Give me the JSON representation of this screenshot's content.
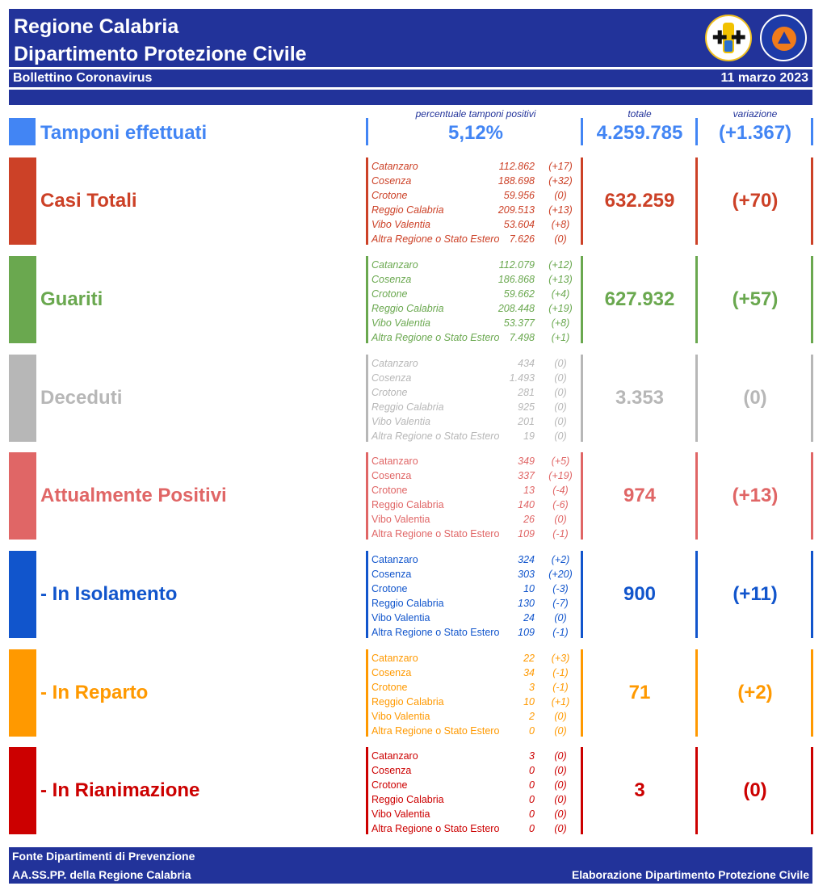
{
  "header": {
    "title_line1": "Regione Calabria",
    "title_line2": "Dipartimento Protezione Civile",
    "subtitle": "Bollettino Coronavirus",
    "date": "11 marzo 2023",
    "logo_region_icon": "regione-calabria-crest-icon",
    "logo_pc_icon": "protezione-civile-logo-icon"
  },
  "columns": {
    "percentage": "percentuale tamponi positivi",
    "total": "totale",
    "variation": "variazione"
  },
  "tamponi": {
    "label": "Tamponi effettuati",
    "percentage": "5,12%",
    "total": "4.259.785",
    "variation": "(+1.367)",
    "color": "#4285f4"
  },
  "categories": [
    {
      "label": "Casi Totali",
      "color": "#cc4127",
      "italic_provinces": true,
      "total": "632.259",
      "variation": "(+70)",
      "provinces": [
        {
          "name": "Catanzaro",
          "value": "112.862",
          "delta": "(+17)"
        },
        {
          "name": "Cosenza",
          "value": "188.698",
          "delta": "(+32)"
        },
        {
          "name": "Crotone",
          "value": "59.956",
          "delta": "(0)"
        },
        {
          "name": "Reggio Calabria",
          "value": "209.513",
          "delta": "(+13)"
        },
        {
          "name": "Vibo Valentia",
          "value": "53.604",
          "delta": "(+8)"
        },
        {
          "name": "Altra Regione o Stato Estero",
          "value": "7.626",
          "delta": "(0)"
        }
      ]
    },
    {
      "label": "Guariti",
      "color": "#6aa84f",
      "italic_provinces": true,
      "total": "627.932",
      "variation": "(+57)",
      "provinces": [
        {
          "name": "Catanzaro",
          "value": "112.079",
          "delta": "(+12)"
        },
        {
          "name": "Cosenza",
          "value": "186.868",
          "delta": "(+13)"
        },
        {
          "name": "Crotone",
          "value": "59.662",
          "delta": "(+4)"
        },
        {
          "name": "Reggio Calabria",
          "value": "208.448",
          "delta": "(+19)"
        },
        {
          "name": "Vibo Valentia",
          "value": "53.377",
          "delta": "(+8)"
        },
        {
          "name": "Altra Regione o Stato Estero",
          "value": "7.498",
          "delta": "(+1)"
        }
      ]
    },
    {
      "label": "Deceduti",
      "color": "#b7b7b7",
      "italic_provinces": true,
      "total": "3.353",
      "variation": "(0)",
      "provinces": [
        {
          "name": "Catanzaro",
          "value": "434",
          "delta": "(0)"
        },
        {
          "name": "Cosenza",
          "value": "1.493",
          "delta": "(0)"
        },
        {
          "name": "Crotone",
          "value": "281",
          "delta": "(0)"
        },
        {
          "name": "Reggio Calabria",
          "value": "925",
          "delta": "(0)"
        },
        {
          "name": "Vibo Valentia",
          "value": "201",
          "delta": "(0)"
        },
        {
          "name": "Altra Regione o Stato Estero",
          "value": "19",
          "delta": "(0)"
        }
      ]
    },
    {
      "label": "Attualmente Positivi",
      "color": "#e06666",
      "italic_provinces": false,
      "total": "974",
      "variation": "(+13)",
      "provinces": [
        {
          "name": "Catanzaro",
          "value": "349",
          "delta": "(+5)"
        },
        {
          "name": "Cosenza",
          "value": "337",
          "delta": "(+19)"
        },
        {
          "name": "Crotone",
          "value": "13",
          "delta": "(-4)"
        },
        {
          "name": "Reggio Calabria",
          "value": "140",
          "delta": "(-6)"
        },
        {
          "name": "Vibo Valentia",
          "value": "26",
          "delta": "(0)"
        },
        {
          "name": "Altra Regione o Stato Estero",
          "value": "109",
          "delta": "(-1)"
        }
      ]
    },
    {
      "label": " - In Isolamento",
      "color": "#1155cc",
      "italic_provinces": false,
      "total": "900",
      "variation": "(+11)",
      "provinces": [
        {
          "name": "Catanzaro",
          "value": "324",
          "delta": "(+2)"
        },
        {
          "name": "Cosenza",
          "value": "303",
          "delta": "(+20)"
        },
        {
          "name": "Crotone",
          "value": "10",
          "delta": "(-3)"
        },
        {
          "name": "Reggio Calabria",
          "value": "130",
          "delta": "(-7)"
        },
        {
          "name": "Vibo Valentia",
          "value": "24",
          "delta": "(0)"
        },
        {
          "name": "Altra Regione o Stato Estero",
          "value": "109",
          "delta": "(-1)"
        }
      ]
    },
    {
      "label": " - In Reparto",
      "color": "#ff9900",
      "italic_provinces": false,
      "total": "71",
      "variation": "(+2)",
      "provinces": [
        {
          "name": "Catanzaro",
          "value": "22",
          "delta": "(+3)"
        },
        {
          "name": "Cosenza",
          "value": "34",
          "delta": "(-1)"
        },
        {
          "name": "Crotone",
          "value": "3",
          "delta": "(-1)"
        },
        {
          "name": "Reggio Calabria",
          "value": "10",
          "delta": "(+1)"
        },
        {
          "name": "Vibo Valentia",
          "value": "2",
          "delta": "(0)"
        },
        {
          "name": "Altra Regione o Stato Estero",
          "value": "0",
          "delta": "(0)"
        }
      ]
    },
    {
      "label": " - In Rianimazione",
      "color": "#cc0000",
      "italic_provinces": false,
      "total": "3",
      "variation": "(0)",
      "provinces": [
        {
          "name": "Catanzaro",
          "value": "3",
          "delta": "(0)"
        },
        {
          "name": "Cosenza",
          "value": "0",
          "delta": "(0)"
        },
        {
          "name": "Crotone",
          "value": "0",
          "delta": "(0)"
        },
        {
          "name": "Reggio Calabria",
          "value": "0",
          "delta": "(0)"
        },
        {
          "name": "Vibo Valentia",
          "value": "0",
          "delta": "(0)"
        },
        {
          "name": "Altra Regione o Stato Estero",
          "value": "0",
          "delta": "(0)"
        }
      ]
    }
  ],
  "footer": {
    "source_line1": "Fonte Dipartimenti di Prevenzione",
    "source_line2": "AA.SS.PP.  della Regione Calabria",
    "credit": "Elaborazione Dipartimento Protezione Civile"
  }
}
